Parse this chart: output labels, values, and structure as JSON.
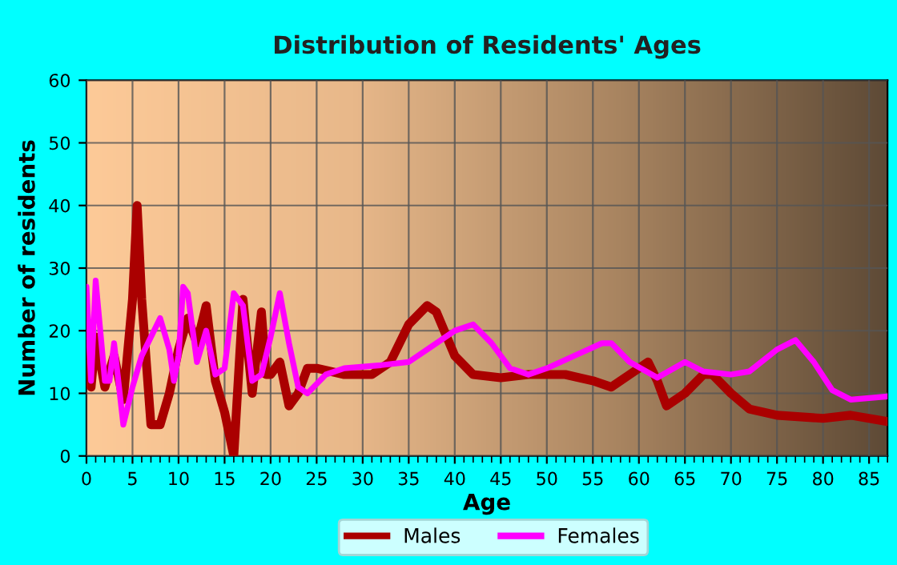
{
  "chart_data": {
    "type": "line",
    "title": "Distribution of Residents' Ages",
    "xlabel": "Age",
    "ylabel": "Number of residents",
    "xlim": [
      0,
      87
    ],
    "xticks": [
      0,
      5,
      10,
      15,
      20,
      25,
      30,
      35,
      40,
      45,
      50,
      55,
      60,
      65,
      70,
      75,
      80,
      85
    ],
    "ylim": [
      0,
      60
    ],
    "yticks": [
      0,
      10,
      20,
      30,
      40,
      50,
      60
    ],
    "grid": true,
    "legend": "bottom",
    "series": [
      {
        "name": "Males",
        "color": "#aa0000",
        "x": [
          0,
          0.5,
          1,
          2,
          3,
          4,
          5,
          5.5,
          6,
          7,
          8,
          9,
          10,
          11,
          12,
          13,
          14,
          15,
          16,
          17,
          18,
          19,
          19.5,
          20,
          21,
          22,
          23,
          24,
          25,
          28,
          31,
          33,
          35,
          37,
          38,
          40,
          42,
          45,
          48,
          52,
          55,
          57,
          59,
          61,
          62,
          63,
          65,
          67,
          68,
          70,
          72,
          75,
          80,
          83,
          87
        ],
        "values": [
          21,
          11,
          19,
          11,
          16,
          9,
          25,
          40,
          25,
          5,
          5,
          10,
          17,
          22,
          18,
          24,
          12,
          7,
          0,
          25,
          10,
          23,
          13,
          13,
          15,
          8,
          10,
          14,
          14,
          13,
          13,
          15,
          21,
          24,
          23,
          16,
          13,
          12.5,
          13,
          13,
          12,
          11,
          13,
          15,
          12,
          8,
          10,
          13,
          13,
          10,
          7.5,
          6.5,
          6,
          6.5,
          5.5
        ]
      },
      {
        "name": "Females",
        "color": "#ff00ff",
        "x": [
          0,
          0.5,
          1,
          2,
          2.5,
          3,
          4,
          5,
          6,
          7,
          8,
          9,
          9.5,
          10,
          10.5,
          11,
          12,
          13,
          14,
          15,
          16,
          17,
          18,
          19,
          20,
          21,
          22,
          23,
          24,
          26,
          28,
          32,
          35,
          37,
          40,
          42,
          44,
          46,
          48,
          50,
          53,
          56,
          57,
          59,
          62,
          65,
          67,
          70,
          72,
          75,
          77,
          79,
          81,
          83,
          87
        ],
        "values": [
          27,
          12,
          28,
          12,
          12,
          18,
          5,
          11,
          16,
          19,
          22,
          17,
          12,
          16,
          27,
          26,
          15,
          20,
          13,
          14,
          26,
          24,
          12,
          13,
          19,
          26,
          18,
          11,
          10,
          13,
          14,
          14.5,
          15,
          17,
          20,
          21,
          18,
          14,
          13,
          14,
          16,
          18,
          18,
          15,
          12.5,
          15,
          13.5,
          13,
          13.5,
          17,
          18.5,
          15,
          10.5,
          9,
          9.5
        ]
      }
    ]
  }
}
